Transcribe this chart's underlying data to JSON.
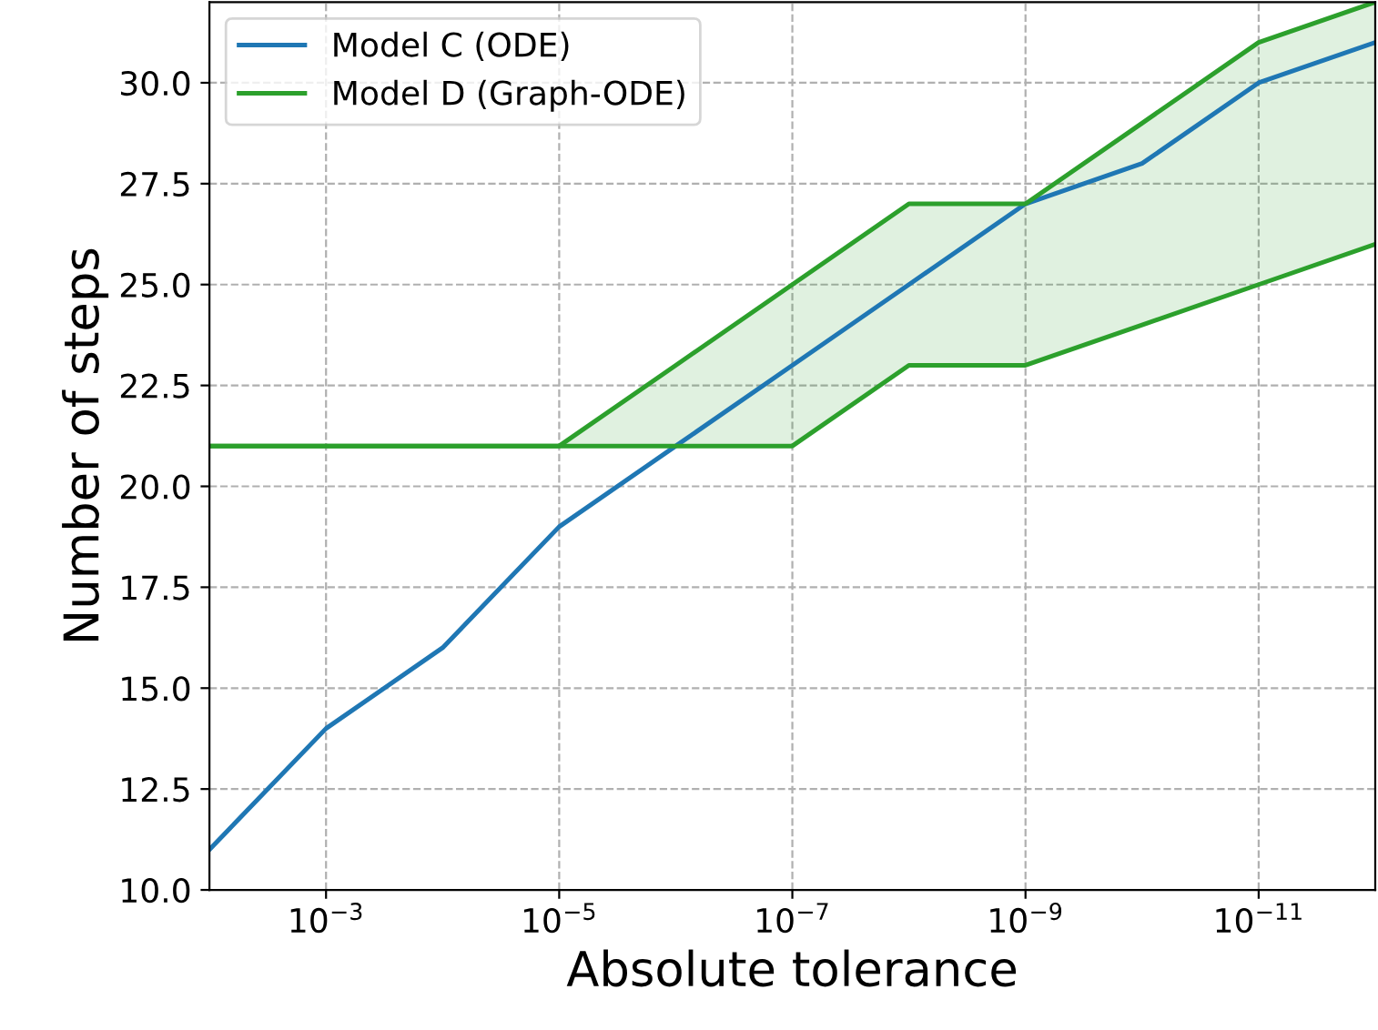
{
  "chart_data": {
    "type": "line",
    "xlabel": "Absolute tolerance",
    "ylabel": "Number of steps",
    "log": "x",
    "x": [
      0.01,
      0.001,
      0.0001,
      1e-05,
      1e-06,
      1e-07,
      1e-08,
      1e-09,
      1e-10,
      1e-11,
      1e-12
    ],
    "series": [
      {
        "name": "Model C (ODE)",
        "color": "#1f77b4",
        "values": [
          11,
          14,
          16,
          19,
          21,
          23,
          25,
          27,
          28,
          30,
          31
        ]
      },
      {
        "name": "Model D (Graph-ODE)",
        "color": "#2ca02c",
        "values": [
          21,
          21,
          21,
          21,
          23,
          25,
          27,
          27,
          29,
          31,
          32
        ],
        "lower": [
          21,
          21,
          21,
          21,
          21,
          21,
          23,
          23,
          24,
          25,
          26
        ],
        "upper": [
          21,
          21,
          21,
          21,
          23,
          25,
          27,
          27,
          29,
          31,
          32
        ]
      },
      {
        "color": "#2ca02c",
        "values": [
          21,
          21,
          21,
          21,
          21,
          21,
          23,
          23,
          24,
          25,
          26
        ]
      }
    ],
    "xlim": [
      0.01,
      1e-12
    ],
    "ylim": [
      10,
      32
    ],
    "xticks": [
      {
        "value": 0.001,
        "label": "10$^{−3}$"
      },
      {
        "value": 1e-05,
        "label": "10$^{−5}$"
      },
      {
        "value": 1e-07,
        "label": "10$^{−7}$"
      },
      {
        "value": 1e-09,
        "label": "10$^{−9}$"
      },
      {
        "value": 1e-11,
        "label": "10$^{−11}$"
      }
    ],
    "yticks": [
      {
        "value": 10,
        "label": "10.0"
      },
      {
        "value": 12.5,
        "label": "12.5"
      },
      {
        "value": 15,
        "label": "15.0"
      },
      {
        "value": 17.5,
        "label": "17.5"
      },
      {
        "value": 20,
        "label": "20.0"
      },
      {
        "value": 22.5,
        "label": "22.5"
      },
      {
        "value": 25,
        "label": "25.0"
      },
      {
        "value": 27.5,
        "label": "27.5"
      },
      {
        "value": 30,
        "label": "30.0"
      }
    ],
    "grid": true,
    "legend": "top left",
    "line_style": "solid",
    "marker": "none"
  }
}
